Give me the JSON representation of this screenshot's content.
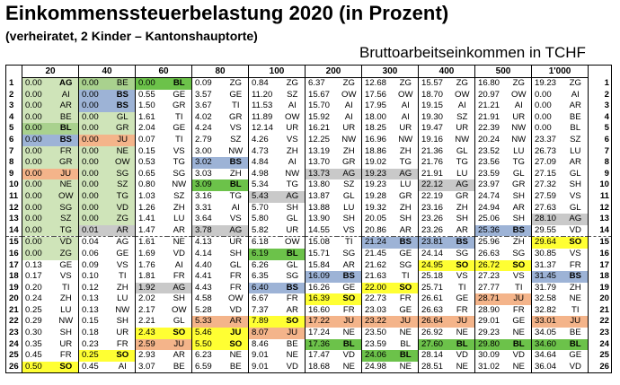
{
  "title": "Einkommenssteuerbelastung 2020 (in Prozent)",
  "subtitle": "(verheiratet, 2 Kinder – Kantonshauptorte)",
  "header_label": "Bruttoarbeitseinkommen in TCHF",
  "columns": [
    "20",
    "40",
    "60",
    "80",
    "100",
    "200",
    "300",
    "400",
    "500",
    "1'000"
  ],
  "rows": [
    [
      [
        "0.00",
        "AG"
      ],
      [
        "0.00",
        "BE"
      ],
      [
        "0.00",
        "BL"
      ],
      [
        "0.09",
        "ZG"
      ],
      [
        "0.84",
        "ZG"
      ],
      [
        "6.37",
        "ZG"
      ],
      [
        "12.68",
        "ZG"
      ],
      [
        "15.57",
        "ZG"
      ],
      [
        "16.80",
        "ZG"
      ],
      [
        "19.23",
        "ZG"
      ]
    ],
    [
      [
        "0.00",
        "AI"
      ],
      [
        "0.00",
        "BS"
      ],
      [
        "0.55",
        "GE"
      ],
      [
        "3.57",
        "GE"
      ],
      [
        "11.20",
        "SZ"
      ],
      [
        "15.67",
        "OW"
      ],
      [
        "17.56",
        "OW"
      ],
      [
        "18.70",
        "OW"
      ],
      [
        "20.97",
        "OW"
      ],
      [
        "0.00",
        "AI"
      ]
    ],
    [
      [
        "0.00",
        "AR"
      ],
      [
        "0.00",
        "BS"
      ],
      [
        "1.50",
        "GR"
      ],
      [
        "3.67",
        "TI"
      ],
      [
        "11.53",
        "AI"
      ],
      [
        "15.70",
        "AI"
      ],
      [
        "17.95",
        "AI"
      ],
      [
        "19.15",
        "AI"
      ],
      [
        "21.21",
        "AI"
      ],
      [
        "0.00",
        "AR"
      ]
    ],
    [
      [
        "0.00",
        "BE"
      ],
      [
        "0.00",
        "GL"
      ],
      [
        "1.61",
        "TI"
      ],
      [
        "4.02",
        "GR"
      ],
      [
        "11.89",
        "OW"
      ],
      [
        "15.92",
        "AI"
      ],
      [
        "18.00",
        "AI"
      ],
      [
        "19.30",
        "SZ"
      ],
      [
        "21.91",
        "UR"
      ],
      [
        "0.00",
        "BE"
      ]
    ],
    [
      [
        "0.00",
        "BL"
      ],
      [
        "0.00",
        "GR"
      ],
      [
        "2.04",
        "GE"
      ],
      [
        "4.24",
        "VS"
      ],
      [
        "12.14",
        "UR"
      ],
      [
        "16.21",
        "UR"
      ],
      [
        "18.25",
        "UR"
      ],
      [
        "19.47",
        "UR"
      ],
      [
        "22.39",
        "NW"
      ],
      [
        "0.00",
        "BL"
      ]
    ],
    [
      [
        "0.00",
        "BS"
      ],
      [
        "0.00",
        "JU"
      ],
      [
        "0.07",
        "TI"
      ],
      [
        "2.79",
        "SZ"
      ],
      [
        "4.26",
        "VS"
      ],
      [
        "12.25",
        "NW"
      ],
      [
        "16.96",
        "NW"
      ],
      [
        "19.16",
        "NW"
      ],
      [
        "20.24",
        "NW"
      ],
      [
        "23.37",
        "SZ"
      ]
    ],
    [
      [
        "0.00",
        "FR"
      ],
      [
        "0.00",
        "NE"
      ],
      [
        "0.15",
        "VS"
      ],
      [
        "3.00",
        "NW"
      ],
      [
        "4.73",
        "ZH"
      ],
      [
        "13.19",
        "ZH"
      ],
      [
        "18.86",
        "ZH"
      ],
      [
        "21.36",
        "GL"
      ],
      [
        "23.52",
        "LU"
      ],
      [
        "26.73",
        "LU"
      ]
    ],
    [
      [
        "0.00",
        "GR"
      ],
      [
        "0.00",
        "OW"
      ],
      [
        "0.53",
        "TG"
      ],
      [
        "3.02",
        "BS"
      ],
      [
        "4.84",
        "AI"
      ],
      [
        "13.70",
        "GR"
      ],
      [
        "19.02",
        "TG"
      ],
      [
        "21.76",
        "TG"
      ],
      [
        "23.56",
        "TG"
      ],
      [
        "27.09",
        "AR"
      ]
    ],
    [
      [
        "0.00",
        "JU"
      ],
      [
        "0.00",
        "SG"
      ],
      [
        "0.65",
        "SG"
      ],
      [
        "3.03",
        "ZH"
      ],
      [
        "4.98",
        "NW"
      ],
      [
        "13.73",
        "AG"
      ],
      [
        "19.23",
        "AG"
      ],
      [
        "21.91",
        "LU"
      ],
      [
        "23.59",
        "GL"
      ],
      [
        "27.15",
        "GL"
      ]
    ],
    [
      [
        "0.00",
        "NE"
      ],
      [
        "0.00",
        "SZ"
      ],
      [
        "0.80",
        "NW"
      ],
      [
        "3.09",
        "BL"
      ],
      [
        "5.34",
        "TG"
      ],
      [
        "13.80",
        "SZ"
      ],
      [
        "19.23",
        "LU"
      ],
      [
        "22.12",
        "AG"
      ],
      [
        "23.97",
        "GR"
      ],
      [
        "27.32",
        "SH"
      ]
    ],
    [
      [
        "0.00",
        "OW"
      ],
      [
        "0.00",
        "TG"
      ],
      [
        "1.03",
        "SZ"
      ],
      [
        "3.16",
        "TG"
      ],
      [
        "5.43",
        "AG"
      ],
      [
        "13.87",
        "GL"
      ],
      [
        "19.28",
        "GR"
      ],
      [
        "22.19",
        "GR"
      ],
      [
        "24.74",
        "SH"
      ],
      [
        "27.59",
        "VS"
      ]
    ],
    [
      [
        "0.00",
        "SG"
      ],
      [
        "0.00",
        "VD"
      ],
      [
        "1.26",
        "ZH"
      ],
      [
        "3.31",
        "AI"
      ],
      [
        "5.70",
        "SH"
      ],
      [
        "13.88",
        "LU"
      ],
      [
        "19.32",
        "ZH"
      ],
      [
        "23.16",
        "ZH"
      ],
      [
        "24.94",
        "AR"
      ],
      [
        "27.63",
        "GL"
      ]
    ],
    [
      [
        "0.00",
        "SZ"
      ],
      [
        "0.00",
        "ZG"
      ],
      [
        "1.41",
        "LU"
      ],
      [
        "3.64",
        "VS"
      ],
      [
        "5.80",
        "GL"
      ],
      [
        "13.90",
        "SH"
      ],
      [
        "20.05",
        "SH"
      ],
      [
        "23.26",
        "SH"
      ],
      [
        "25.06",
        "SH"
      ],
      [
        "28.10",
        "AG"
      ]
    ],
    [
      [
        "0.00",
        "TG"
      ],
      [
        "0.01",
        "AR"
      ],
      [
        "1.47",
        "AR"
      ],
      [
        "3.78",
        "AG"
      ],
      [
        "5.82",
        "UR"
      ],
      [
        "14.55",
        "VS"
      ],
      [
        "20.86",
        "AR"
      ],
      [
        "23.26",
        "AR"
      ],
      [
        "25.36",
        "BS"
      ],
      [
        "29.55",
        "VD"
      ]
    ],
    [
      [
        "0.00",
        "VD"
      ],
      [
        "0.04",
        "AG"
      ],
      [
        "1.61",
        "NE"
      ],
      [
        "4.13",
        "UR"
      ],
      [
        "6.18",
        "OW"
      ],
      [
        "15.08",
        "TI"
      ],
      [
        "21.24",
        "BS"
      ],
      [
        "23.81",
        "BS"
      ],
      [
        "25.96",
        "ZH"
      ],
      [
        "29.64",
        "SO"
      ]
    ],
    [
      [
        "0.00",
        "ZG"
      ],
      [
        "0.06",
        "GE"
      ],
      [
        "1.69",
        "VD"
      ],
      [
        "4.14",
        "SH"
      ],
      [
        "6.19",
        "BL"
      ],
      [
        "15.71",
        "SG"
      ],
      [
        "21.45",
        "GE"
      ],
      [
        "24.14",
        "SG"
      ],
      [
        "26.63",
        "SG"
      ],
      [
        "30.85",
        "VS"
      ]
    ],
    [
      [
        "0.13",
        "GE"
      ],
      [
        "0.09",
        "VS"
      ],
      [
        "1.76",
        "AI"
      ],
      [
        "4.40",
        "GL"
      ],
      [
        "6.26",
        "GL"
      ],
      [
        "15.84",
        "AR"
      ],
      [
        "21.62",
        "SG"
      ],
      [
        "24.95",
        "SO"
      ],
      [
        "26.72",
        "SO"
      ],
      [
        "31.37",
        "FR"
      ]
    ],
    [
      [
        "0.17",
        "VS"
      ],
      [
        "0.10",
        "TI"
      ],
      [
        "1.81",
        "FR"
      ],
      [
        "4.41",
        "FR"
      ],
      [
        "6.35",
        "SG"
      ],
      [
        "16.09",
        "BS"
      ],
      [
        "21.63",
        "TI"
      ],
      [
        "25.18",
        "VS"
      ],
      [
        "27.23",
        "VS"
      ],
      [
        "31.45",
        "BS"
      ]
    ],
    [
      [
        "0.20",
        "TI"
      ],
      [
        "0.12",
        "ZH"
      ],
      [
        "1.92",
        "AG"
      ],
      [
        "4.43",
        "FR"
      ],
      [
        "6.40",
        "BS"
      ],
      [
        "16.26",
        "GE"
      ],
      [
        "22.00",
        "SO"
      ],
      [
        "25.71",
        "TI"
      ],
      [
        "27.77",
        "TI"
      ],
      [
        "31.79",
        "ZH"
      ]
    ],
    [
      [
        "0.24",
        "ZH"
      ],
      [
        "0.13",
        "LU"
      ],
      [
        "2.02",
        "SH"
      ],
      [
        "4.58",
        "OW"
      ],
      [
        "6.67",
        "FR"
      ],
      [
        "16.39",
        "SO"
      ],
      [
        "22.73",
        "FR"
      ],
      [
        "26.61",
        "GE"
      ],
      [
        "28.71",
        "JU"
      ],
      [
        "32.58",
        "NE"
      ]
    ],
    [
      [
        "0.25",
        "LU"
      ],
      [
        "0.13",
        "NW"
      ],
      [
        "2.17",
        "OW"
      ],
      [
        "5.28",
        "VD"
      ],
      [
        "7.37",
        "AR"
      ],
      [
        "16.60",
        "FR"
      ],
      [
        "23.03",
        "GE"
      ],
      [
        "26.63",
        "FR"
      ],
      [
        "28.90",
        "FR"
      ],
      [
        "32.82",
        "TI"
      ]
    ],
    [
      [
        "0.29",
        "NW"
      ],
      [
        "0.15",
        "SH"
      ],
      [
        "2.21",
        "GL"
      ],
      [
        "5.33",
        "AR"
      ],
      [
        "7.89",
        "SO"
      ],
      [
        "17.22",
        "JU"
      ],
      [
        "23.22",
        "JU"
      ],
      [
        "26.64",
        "JU"
      ],
      [
        "29.01",
        "GE"
      ],
      [
        "33.01",
        "JU"
      ]
    ],
    [
      [
        "0.30",
        "SH"
      ],
      [
        "0.18",
        "UR"
      ],
      [
        "2.43",
        "SO"
      ],
      [
        "5.46",
        "JU"
      ],
      [
        "8.07",
        "JU"
      ],
      [
        "17.24",
        "NE"
      ],
      [
        "23.50",
        "NE"
      ],
      [
        "26.92",
        "NE"
      ],
      [
        "29.23",
        "NE"
      ],
      [
        "34.05",
        "BE"
      ]
    ],
    [
      [
        "0.35",
        "UR"
      ],
      [
        "0.23",
        "FR"
      ],
      [
        "2.59",
        "JU"
      ],
      [
        "5.50",
        "SO"
      ],
      [
        "8.46",
        "BE"
      ],
      [
        "17.36",
        "BL"
      ],
      [
        "23.59",
        "BL"
      ],
      [
        "27.60",
        "BL"
      ],
      [
        "29.80",
        "BL"
      ],
      [
        "34.60",
        "BL"
      ]
    ],
    [
      [
        "0.45",
        "FR"
      ],
      [
        "0.25",
        "SO"
      ],
      [
        "2.93",
        "AR"
      ],
      [
        "6.23",
        "NE"
      ],
      [
        "9.01",
        "NE"
      ],
      [
        "17.47",
        "VD"
      ],
      [
        "24.06",
        "BL"
      ],
      [
        "28.14",
        "VD"
      ],
      [
        "30.09",
        "VD"
      ],
      [
        "34.64",
        "GE"
      ]
    ],
    [
      [
        "0.50",
        "SO"
      ],
      [
        "0.45",
        "AI"
      ],
      [
        "3.07",
        "BE"
      ],
      [
        "6.59",
        "BE"
      ],
      [
        "9.01",
        "VD"
      ],
      [
        "18.68",
        "NE"
      ],
      [
        "24.98",
        "NE"
      ],
      [
        "28.51",
        "NE"
      ],
      [
        "31.02",
        "NE"
      ],
      [
        "36.04",
        "VD"
      ]
    ]
  ],
  "colors": {
    "green": "#a9d18e",
    "dark_green": "#6cc24a",
    "blue": "#9db3d6",
    "gray": "#a6a6a6",
    "yellow": "#ffff33",
    "orange": "#f4b48a"
  }
}
